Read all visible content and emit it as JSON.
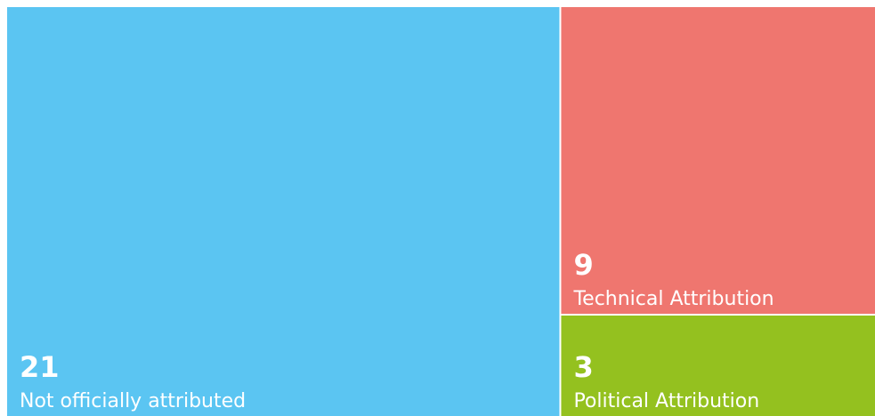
{
  "chart_data": {
    "type": "treemap",
    "categories": [
      "Not officially attributed",
      "Technical Attribution",
      "Political Attribution"
    ],
    "values": [
      21,
      9,
      3
    ],
    "colors": [
      "#5bc5f2",
      "#ef766f",
      "#94c11f"
    ]
  }
}
